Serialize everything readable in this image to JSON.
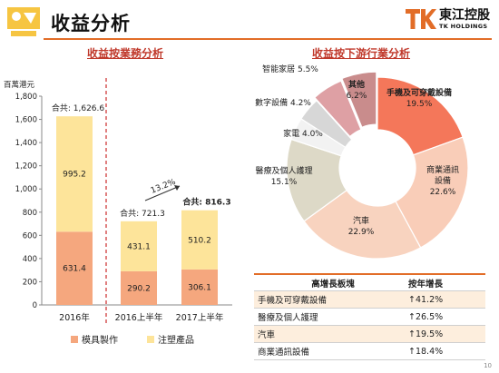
{
  "page": {
    "title": "收益分析",
    "number": "10"
  },
  "brand": {
    "name_cn": "東江控股",
    "name_en": "TK HOLDINGS",
    "mark": "TK"
  },
  "colors": {
    "accent": "#e26d28",
    "title_red": "#c0392b",
    "mould": "#f5a77e",
    "plastic": "#fde49a",
    "divider": "#cc2b2b"
  },
  "chart_data": [
    {
      "type": "bar",
      "title": "收益按業務分析",
      "ylabel": "百萬港元",
      "ylim": [
        0,
        1800
      ],
      "yticks": [
        0,
        200,
        400,
        600,
        800,
        1000,
        1200,
        1400,
        1600,
        1800
      ],
      "categories": [
        "2016年",
        "2016上半年",
        "2017上半年"
      ],
      "series": [
        {
          "name": "模具製作",
          "values": [
            631.4,
            290.2,
            306.1
          ],
          "color": "#f5a77e"
        },
        {
          "name": "注塑產品",
          "values": [
            995.2,
            431.1,
            510.2
          ],
          "color": "#fde49a"
        }
      ],
      "totals": [
        {
          "label": "合共: 1,626.6",
          "value": 1626.6
        },
        {
          "label": "合共: 721.3",
          "value": 721.3
        },
        {
          "label": "合共: 816.3",
          "value": 816.3
        }
      ],
      "growth": "13.2%",
      "legend_placement": "bottom"
    },
    {
      "type": "pie",
      "title": "收益按下游行業分析",
      "slices": [
        {
          "name": "手機及可穿戴設備",
          "value": 19.5,
          "label": "19.5%",
          "color": "#f4775a"
        },
        {
          "name": "商業通訊設備",
          "value": 22.6,
          "label": "22.6%",
          "color": "#f9cdb8"
        },
        {
          "name": "汽車",
          "value": 22.9,
          "label": "22.9%",
          "color": "#f8d3bf"
        },
        {
          "name": "醫療及個人護理",
          "value": 15.1,
          "label": "15.1%",
          "color": "#ddd9c7"
        },
        {
          "name": "家電",
          "value": 4.0,
          "label": "4.0%",
          "color": "#f2f2f2"
        },
        {
          "name": "數字設備",
          "value": 4.2,
          "label": "4.2%",
          "color": "#d7d7d7"
        },
        {
          "name": "智能家居",
          "value": 5.5,
          "label": "5.5%",
          "color": "#dea0a4"
        },
        {
          "name": "其他",
          "value": 6.2,
          "label": "6.2%",
          "color": "#c98c8c"
        }
      ]
    }
  ],
  "growth_table": {
    "headers": [
      "高增長板塊",
      "按年增長"
    ],
    "rows": [
      {
        "sector": "手機及可穿戴設備",
        "growth": "↑41.2%"
      },
      {
        "sector": "醫療及個人護理",
        "growth": "↑26.5%"
      },
      {
        "sector": "汽車",
        "growth": "↑19.5%"
      },
      {
        "sector": "商業通訊設備",
        "growth": "↑18.4%"
      }
    ]
  }
}
